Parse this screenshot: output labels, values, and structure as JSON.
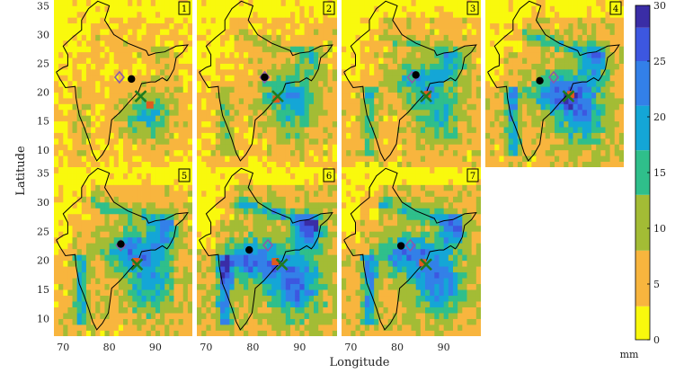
{
  "figure": {
    "xlabel": "Longitude",
    "ylabel": "Latitude",
    "lon_range": [
      68,
      98
    ],
    "lat_range": [
      7,
      36
    ],
    "lon_ticks": [
      "70",
      "80",
      "90"
    ],
    "lat_ticks": [
      "10",
      "15",
      "20",
      "25",
      "30",
      "35"
    ],
    "colorbar": {
      "unit": "mm",
      "ticks": [
        "0",
        "5",
        "10",
        "15",
        "20",
        "25",
        "30"
      ],
      "bins": [
        {
          "min": 0,
          "max": 3,
          "color": "#f9f90d"
        },
        {
          "min": 3,
          "max": 8,
          "color": "#f8b53e"
        },
        {
          "min": 8,
          "max": 13,
          "color": "#a3bc35"
        },
        {
          "min": 13,
          "max": 17,
          "color": "#2fbf8b"
        },
        {
          "min": 17,
          "max": 21,
          "color": "#14a6d6"
        },
        {
          "min": 21,
          "max": 25,
          "color": "#3380e8"
        },
        {
          "min": 25,
          "max": 28,
          "color": "#3d57e0"
        },
        {
          "min": 28,
          "max": 30,
          "color": "#3a2da6"
        }
      ]
    },
    "panels": [
      {
        "id": "1",
        "label": "1",
        "intensity": 0.2,
        "bands": [
          [
            88,
            16,
            0.5
          ]
        ],
        "markers": {
          "circle": [
            84.8,
            22.3
          ],
          "diamond": [
            82.2,
            22.6
          ],
          "square": [
            88.8,
            17.8
          ],
          "cross": [
            86.8,
            19.3
          ]
        }
      },
      {
        "id": "2",
        "label": "2",
        "intensity": 0.35,
        "bands": [
          [
            87,
            20,
            0.6
          ]
        ],
        "markers": {
          "circle": [
            82.5,
            22.6
          ],
          "diamond": [
            82.5,
            22.6
          ],
          "square": [
            85.0,
            18.8
          ],
          "cross": [
            85.3,
            19.3
          ]
        }
      },
      {
        "id": "3",
        "label": "3",
        "intensity": 0.45,
        "bands": [
          [
            85,
            22,
            0.7
          ]
        ],
        "markers": {
          "circle": [
            84.0,
            23.0
          ],
          "diamond": [
            83.2,
            22.6
          ],
          "square": [
            86.5,
            19.6
          ],
          "cross": [
            86.2,
            19.3
          ]
        }
      },
      {
        "id": "4",
        "label": "4",
        "intensity": 0.6,
        "bands": [
          [
            84,
            20,
            0.9
          ]
        ],
        "markers": {
          "circle": [
            79.8,
            22.0
          ],
          "diamond": [
            82.8,
            22.6
          ],
          "square": [
            86.5,
            19.6
          ],
          "cross": [
            86.0,
            19.3
          ]
        }
      },
      {
        "id": "5",
        "label": "5",
        "intensity": 0.55,
        "bands": [
          [
            85,
            22,
            0.8
          ]
        ],
        "markers": {
          "circle": [
            82.5,
            22.8
          ],
          "diamond": [
            82.5,
            22.6
          ],
          "square": [
            85.8,
            19.8
          ],
          "cross": [
            86.0,
            19.3
          ]
        }
      },
      {
        "id": "6",
        "label": "6",
        "intensity": 0.75,
        "bands": [
          [
            80,
            20,
            1.0
          ]
        ],
        "markers": {
          "circle": [
            79.2,
            21.8
          ],
          "diamond": [
            83.2,
            22.6
          ],
          "square": [
            84.8,
            19.8
          ],
          "cross": [
            86.2,
            19.3
          ]
        }
      },
      {
        "id": "7",
        "label": "7",
        "intensity": 0.65,
        "bands": [
          [
            82,
            21,
            0.9
          ]
        ],
        "markers": {
          "circle": [
            80.8,
            22.5
          ],
          "diamond": [
            82.8,
            22.6
          ],
          "square": [
            85.5,
            19.6
          ],
          "cross": [
            86.2,
            19.3
          ]
        }
      }
    ]
  }
}
